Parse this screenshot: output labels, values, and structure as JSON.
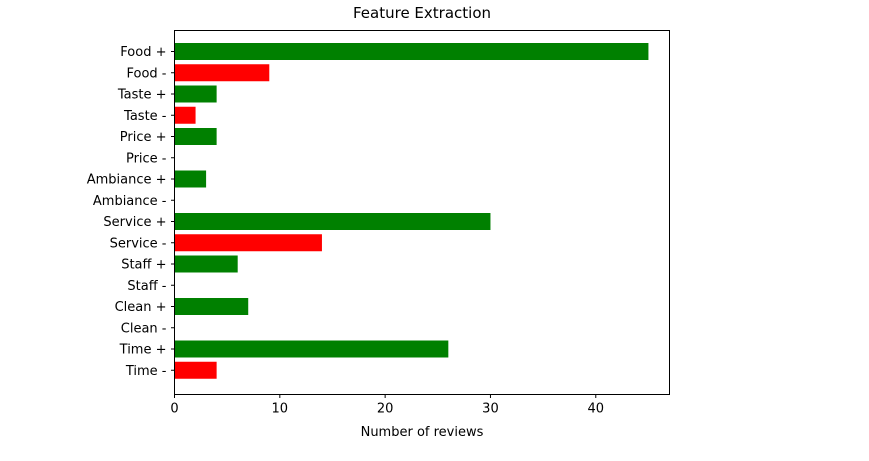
{
  "chart_data": {
    "type": "bar",
    "orientation": "horizontal",
    "title": "Feature Extraction",
    "xlabel": "Number of reviews",
    "ylabel": "",
    "xlim": [
      0,
      47
    ],
    "xticks": [
      0,
      10,
      20,
      30,
      40
    ],
    "grid": false,
    "colors": {
      "positive": "#008000",
      "negative": "#ff0000"
    },
    "categories": [
      "Food +",
      "Food -",
      "Taste +",
      "Taste -",
      "Price +",
      "Price -",
      "Ambiance +",
      "Ambiance -",
      "Service +",
      "Service -",
      "Staff +",
      "Staff -",
      "Clean +",
      "Clean -",
      "Time +",
      "Time -"
    ],
    "values": [
      45,
      9,
      4,
      2,
      4,
      0,
      3,
      0,
      30,
      14,
      6,
      0,
      7,
      0,
      26,
      4
    ],
    "bar_colors": [
      "#008000",
      "#ff0000",
      "#008000",
      "#ff0000",
      "#008000",
      "#ff0000",
      "#008000",
      "#ff0000",
      "#008000",
      "#ff0000",
      "#008000",
      "#ff0000",
      "#008000",
      "#ff0000",
      "#008000",
      "#ff0000"
    ]
  }
}
